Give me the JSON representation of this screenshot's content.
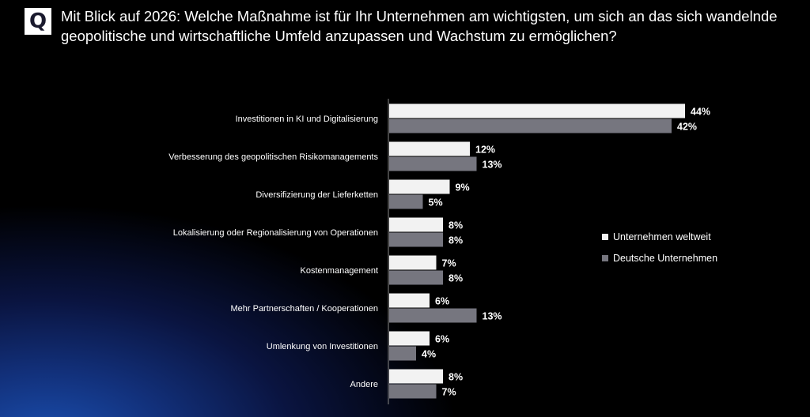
{
  "question_icon": "Q",
  "title": "Mit Blick auf 2026: Welche Maßnahme ist für Ihr Unternehmen am wichtigsten, um sich an das sich wandelnde geopolitische und wirtschaftliche Umfeld anzupassen und Wachstum zu ermöglichen?",
  "chart_data": {
    "type": "bar",
    "orientation": "horizontal",
    "title": "Mit Blick auf 2026: Welche Maßnahme ist für Ihr Unternehmen am wichtigsten, um sich an das sich wandelnde geopolitische und wirtschaftliche Umfeld anzupassen und Wachstum zu ermöglichen?",
    "categories": [
      "Investitionen in KI und Digitalisierung",
      "Verbesserung des geopolitischen Risikomanagements",
      "Diversifizierung der Lieferketten",
      "Lokalisierung oder Regionalisierung von Operationen",
      "Kostenmanagement",
      "Mehr Partnerschaften / Kooperationen",
      "Umlenkung von Investitionen",
      "Andere"
    ],
    "series": [
      {
        "name": "Unternehmen weltweit",
        "color": "#f2f2f2",
        "values": [
          44,
          12,
          9,
          8,
          7,
          6,
          6,
          8
        ],
        "labels": [
          "44%",
          "12%",
          "9%",
          "8%",
          "7%",
          "6%",
          "6%",
          "8%"
        ]
      },
      {
        "name": "Deutsche Unternehmen",
        "color": "#76767f",
        "values": [
          42,
          13,
          5,
          8,
          8,
          13,
          4,
          7
        ],
        "labels": [
          "42%",
          "13%",
          "5%",
          "8%",
          "8%",
          "13%",
          "4%",
          "7%"
        ]
      }
    ],
    "unit": "%",
    "legend": "right",
    "grid": false
  }
}
